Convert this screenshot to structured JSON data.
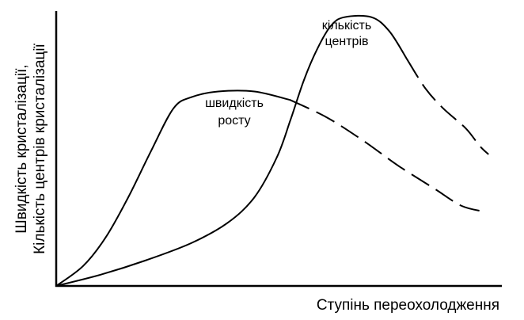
{
  "chart_data": {
    "type": "line",
    "title": "",
    "xlabel": "Ступінь переохолодження",
    "ylabel_lines": [
      "Швидкість кристалізації,",
      "Кількість центрів кристалізації"
    ],
    "xlim": [
      0,
      1
    ],
    "ylim": [
      0,
      1
    ],
    "x_ticks": [],
    "y_ticks": [],
    "grid": false,
    "legend": "none",
    "series": [
      {
        "annotation_lines": [
          "швидкість",
          "росту"
        ],
        "style": {
          "solid_until_x": 0.52,
          "dashed_after": true
        },
        "points": [
          [
            0.0,
            0.0
          ],
          [
            0.06,
            0.07
          ],
          [
            0.11,
            0.17
          ],
          [
            0.16,
            0.31
          ],
          [
            0.21,
            0.47
          ],
          [
            0.26,
            0.62
          ],
          [
            0.3,
            0.66
          ],
          [
            0.36,
            0.68
          ],
          [
            0.44,
            0.68
          ],
          [
            0.52,
            0.65
          ],
          [
            0.6,
            0.59
          ],
          [
            0.68,
            0.51
          ],
          [
            0.76,
            0.42
          ],
          [
            0.84,
            0.34
          ],
          [
            0.9,
            0.28
          ],
          [
            0.95,
            0.26
          ]
        ]
      },
      {
        "annotation_lines": [
          "кількість",
          "центрів"
        ],
        "style": {
          "solid_until_x": 0.78,
          "dashed_after": true
        },
        "points": [
          [
            0.0,
            0.0
          ],
          [
            0.1,
            0.04
          ],
          [
            0.2,
            0.09
          ],
          [
            0.3,
            0.15
          ],
          [
            0.38,
            0.22
          ],
          [
            0.44,
            0.31
          ],
          [
            0.49,
            0.45
          ],
          [
            0.52,
            0.58
          ],
          [
            0.55,
            0.72
          ],
          [
            0.58,
            0.83
          ],
          [
            0.61,
            0.91
          ],
          [
            0.64,
            0.94
          ],
          [
            0.7,
            0.94
          ],
          [
            0.74,
            0.89
          ],
          [
            0.78,
            0.79
          ],
          [
            0.82,
            0.69
          ],
          [
            0.86,
            0.62
          ],
          [
            0.91,
            0.55
          ],
          [
            0.94,
            0.49
          ],
          [
            0.96,
            0.46
          ]
        ]
      }
    ]
  }
}
